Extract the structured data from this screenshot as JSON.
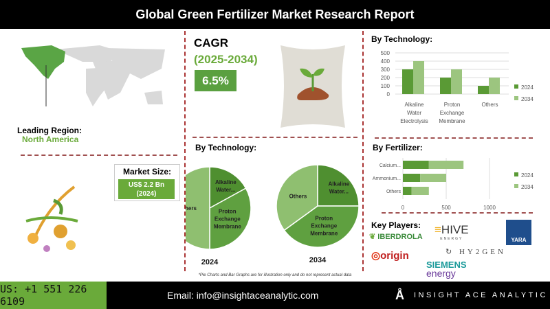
{
  "title": "Global Green Fertilizer Market Research Report",
  "region": {
    "label": "Leading Region:",
    "value": "North America"
  },
  "market_size": {
    "label": "Market Size:",
    "value": "US$ 2.2 Bn",
    "year": "(2024)"
  },
  "cagr": {
    "label": "CAGR",
    "period": "(2025-2034)",
    "value": "6.5%"
  },
  "colors": {
    "dark_green": "#5a9a35",
    "light_green": "#9cc57f",
    "accent": "#6aaa3a",
    "divider": "#a33333"
  },
  "chart_data": [
    {
      "type": "bar",
      "title": "By Technology:",
      "categories": [
        "Alkaline Water Electrolysis",
        "Proton Exchange Membrane",
        "Others"
      ],
      "series": [
        {
          "name": "2024",
          "values": [
            300,
            200,
            100
          ]
        },
        {
          "name": "2034",
          "values": [
            400,
            300,
            200
          ]
        }
      ],
      "ylim": [
        0,
        500
      ],
      "yticks": [
        0,
        100,
        200,
        300,
        400,
        500
      ],
      "grid": true,
      "legend": "right"
    },
    {
      "type": "bar",
      "orientation": "horizontal",
      "stacked": true,
      "title": "By Fertilizer:",
      "categories": [
        "Calcium...",
        "Ammonium...",
        "Others"
      ],
      "series": [
        {
          "name": "2024",
          "values": [
            300,
            200,
            100
          ]
        },
        {
          "name": "2034",
          "values": [
            400,
            300,
            200
          ]
        }
      ],
      "xlim": [
        0,
        1000
      ],
      "xticks": [
        0,
        500,
        1000
      ],
      "grid": true,
      "legend": "right"
    },
    {
      "type": "pie",
      "title": "By Technology:",
      "name": "2024",
      "labels": [
        "Alkaline Water...",
        "Proton Exchange Membrane",
        "Others"
      ],
      "values": [
        17,
        33,
        50
      ]
    },
    {
      "type": "pie",
      "name": "2034",
      "labels": [
        "Alkaline Water...",
        "Proton Exchange Membrane",
        "Others"
      ],
      "values": [
        25,
        40,
        35
      ]
    }
  ],
  "pie_labels": {
    "alk": [
      "Alkaline",
      "Water..."
    ],
    "pem": [
      "Proton",
      "Exchange",
      "Membrane"
    ],
    "oth": "Others"
  },
  "key_players": {
    "label": "Key Players:",
    "items": [
      "IBERDROLA",
      "HIVE",
      "ENERGY",
      "YARA",
      "origin",
      "HY2GEN",
      "SIEMENS",
      "energy"
    ]
  },
  "disclaimer": "*Pie Charts and Bar Graphs are for illustration only and do not represent actual data",
  "footer": {
    "phone": "US: +1 551 226 6109",
    "email": "Email: info@insightaceanalytic.com",
    "brand": "INSIGHT ACE ANALYTIC"
  }
}
